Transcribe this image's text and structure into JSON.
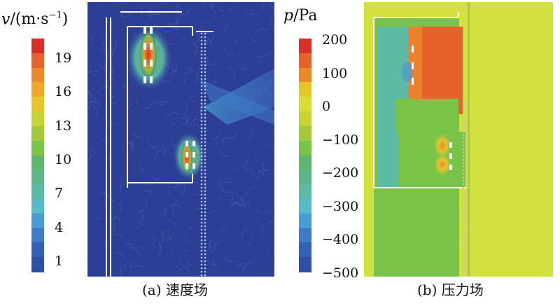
{
  "velocity": {
    "unit_label": "v/(m·s⁻¹)",
    "ticks": [
      "19",
      "16",
      "13",
      "10",
      "7",
      "4",
      "1"
    ],
    "caption": "(a) 速度场"
  },
  "pressure": {
    "unit_label": "p/Pa",
    "ticks": [
      "200",
      "100",
      "0",
      "−100",
      "−200",
      "−300",
      "−400",
      "−500"
    ],
    "caption": "(b) 压力场"
  },
  "colors": {
    "velocity_scale": [
      "#2d4fa6",
      "#3361b5",
      "#3f7bc7",
      "#4a9ad3",
      "#58b9c9",
      "#5dbba5",
      "#5db58b",
      "#5fb66e",
      "#7ac349",
      "#a3c93a",
      "#c7d235",
      "#e7c62b",
      "#efa728",
      "#ec8a2a",
      "#e5622b",
      "#d92f29"
    ],
    "pressure_scale": [
      "#2d4fa6",
      "#3361b5",
      "#3f7bc7",
      "#4a9ad3",
      "#58b9c9",
      "#5dbba5",
      "#5db58b",
      "#5fb66e",
      "#7ac349",
      "#a3c93a",
      "#c7d235",
      "#d7dd34",
      "#e7c62b",
      "#ec8a2a",
      "#e5622b",
      "#d92f29"
    ],
    "velocity_background": "#2c3e96",
    "pressure_background": "#d2e040"
  }
}
